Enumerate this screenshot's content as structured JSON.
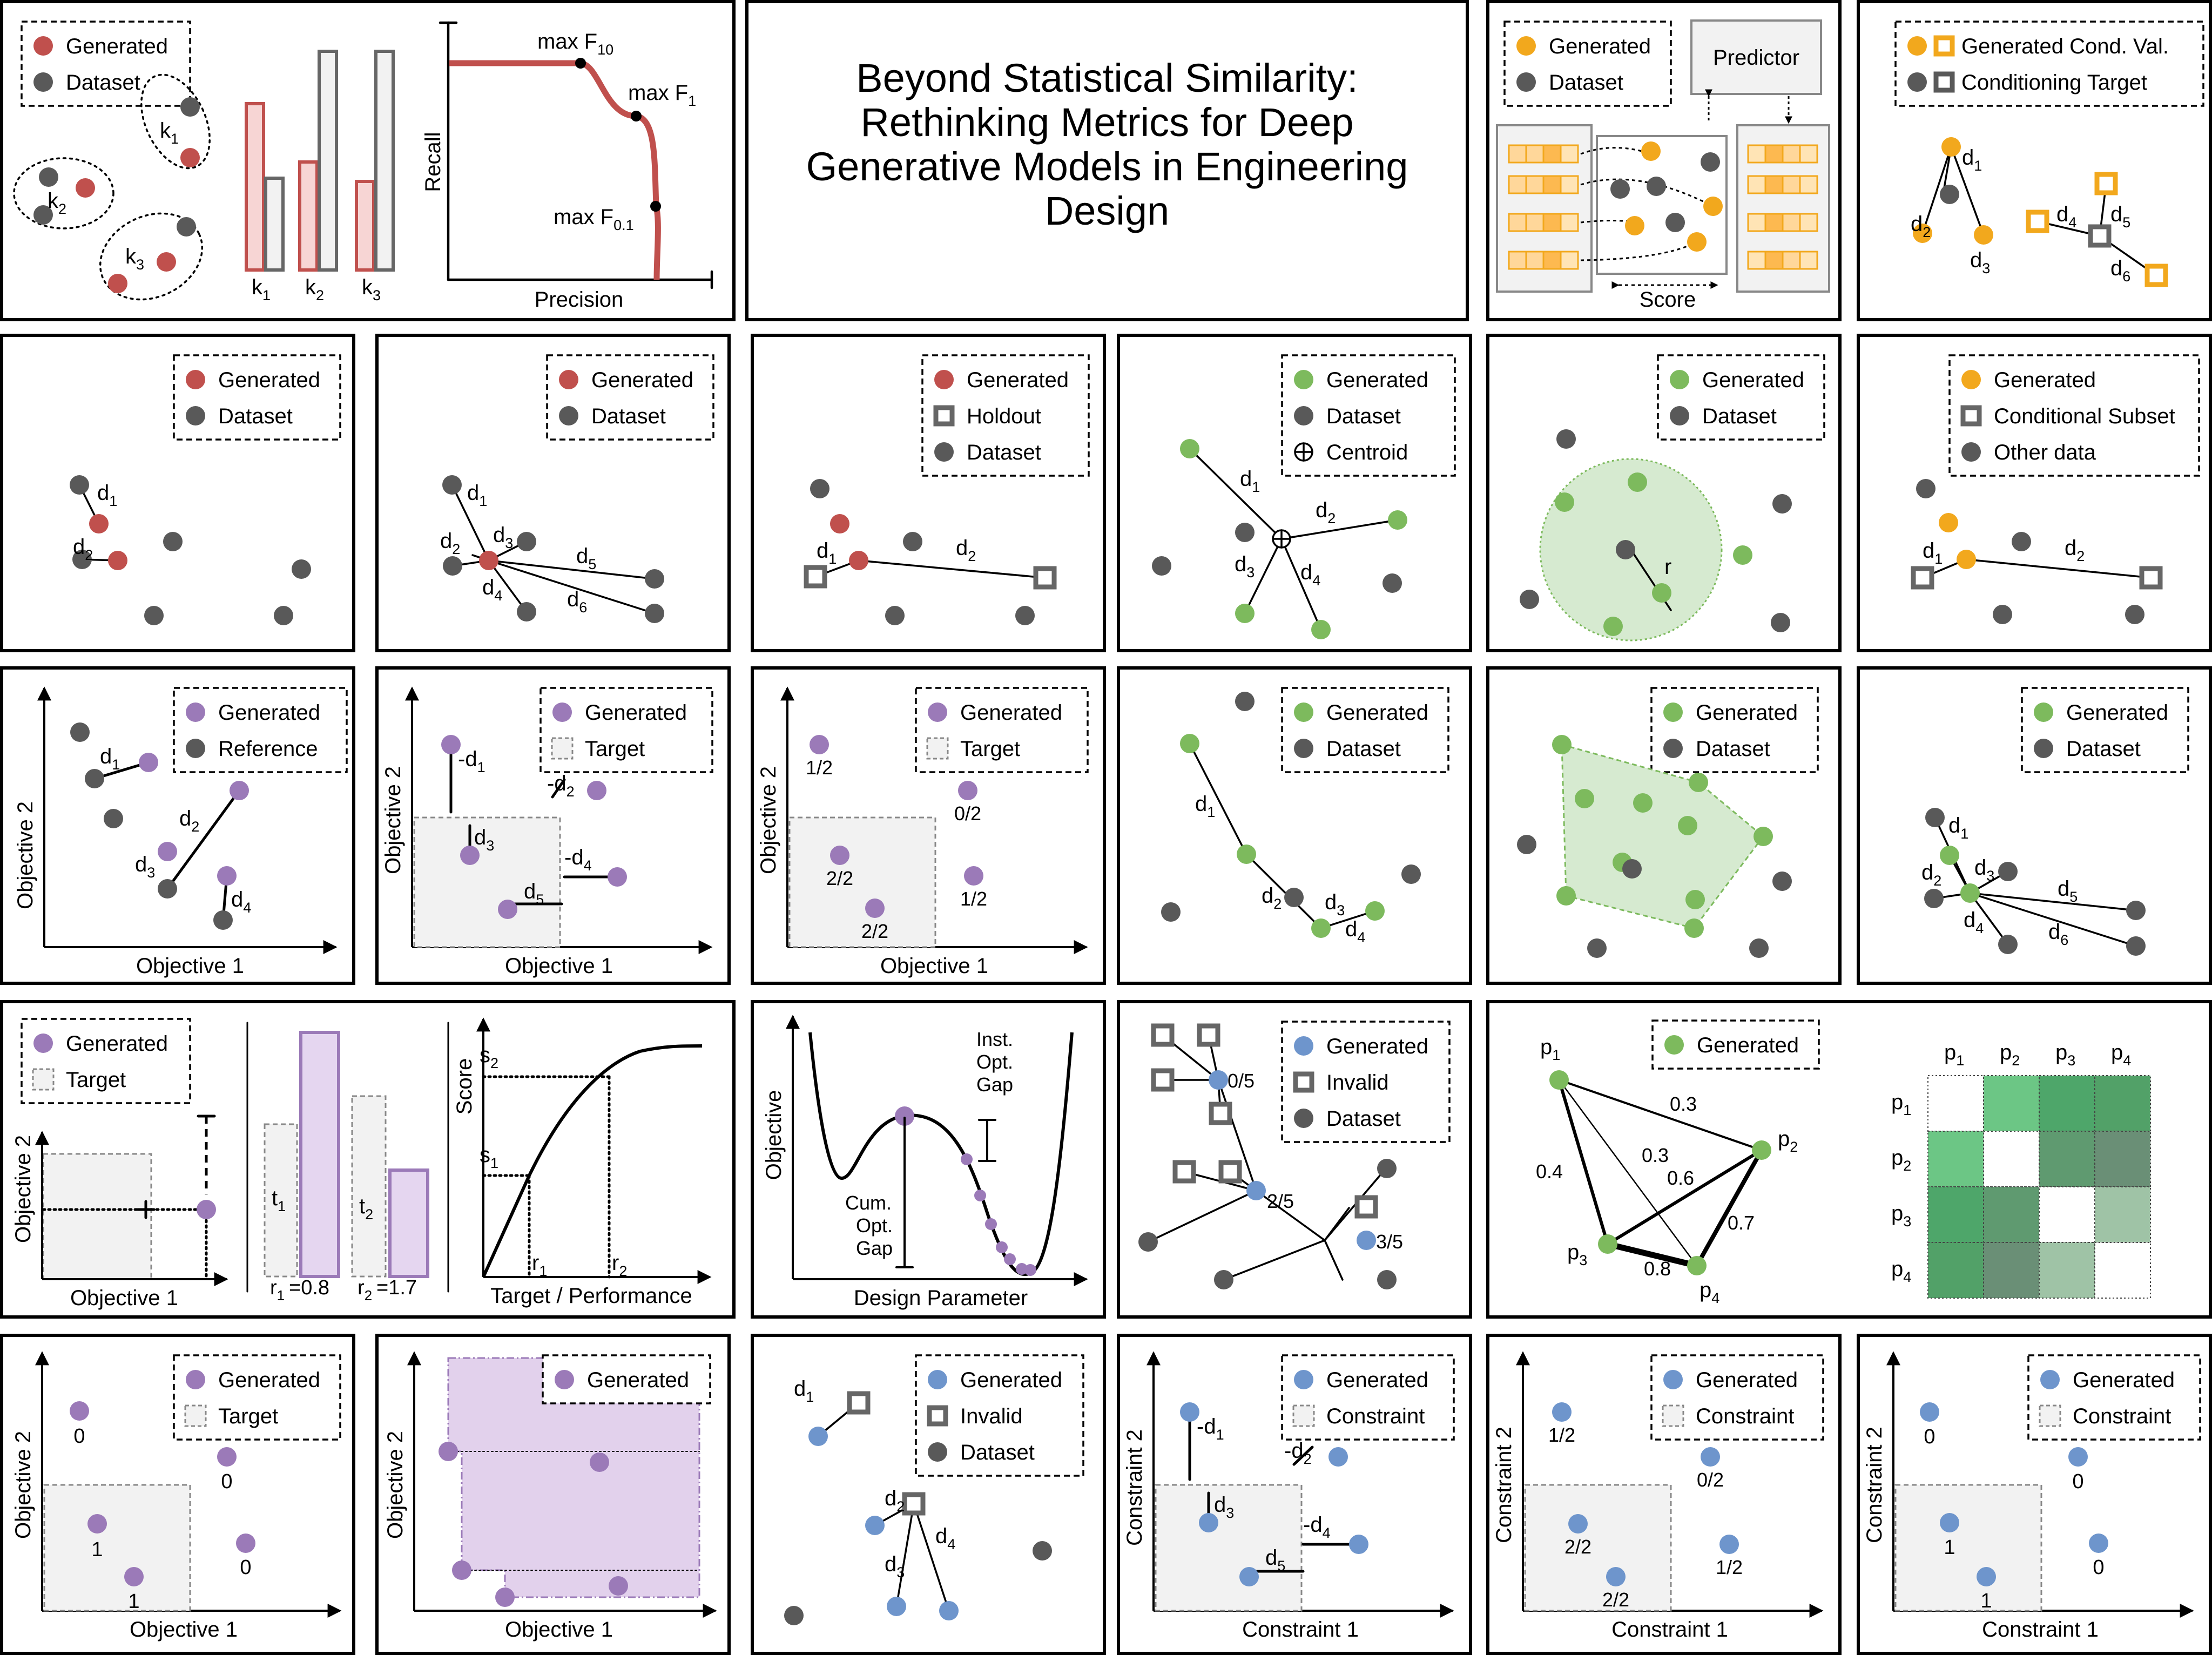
{
  "title": {
    "lines": [
      "Beyond Statistical Similarity:",
      "Rethinking Metrics for Deep",
      "Generative Models in Engineering",
      "Design"
    ]
  },
  "colors": {
    "red": "#c0504d",
    "gray": "#595959",
    "green": "#7dba5d",
    "purple": "#9b7ab8",
    "blue": "#6e95cc",
    "orange": "#f2a81d",
    "square": "#666666"
  },
  "legend": {
    "generated": "Generated",
    "dataset": "Dataset",
    "holdout": "Holdout",
    "centroid": "Centroid",
    "conditional_subset": "Conditional Subset",
    "other_data": "Other data",
    "reference": "Reference",
    "target": "Target",
    "invalid": "Invalid",
    "constraint": "Constraint",
    "generated_cond_val": "Generated Cond. Val.",
    "conditioning_target": "Conditioning Target"
  },
  "axes": {
    "recall": "Recall",
    "precision": "Precision",
    "objective_1": "Objective 1",
    "objective_2": "Objective 2",
    "constraint_1": "Constraint 1",
    "constraint_2": "Constraint 2",
    "score": "Score",
    "target_performance": "Target / Performance",
    "objective": "Objective",
    "design_parameter": "Design Parameter"
  },
  "labels": {
    "predictor": "Predictor",
    "score": "Score",
    "f_points": [
      "max F",
      "10",
      "max F",
      "1",
      "max F",
      "0.1"
    ],
    "k": [
      "k",
      "1",
      "k",
      "2",
      "k",
      "3"
    ],
    "d": [
      "d",
      "1",
      "2",
      "3",
      "4",
      "5",
      "6"
    ],
    "neg_d": "-d",
    "r": "r",
    "t1": "t",
    "t2": "t",
    "s1": "s",
    "s2": "s",
    "r1_val": "=0.8",
    "r2_val": "=1.7",
    "frac": {
      "half": "1/2",
      "zero_two": "0/2",
      "two_two": "2/2",
      "zero_five": "0/5",
      "two_five": "2/5",
      "three_five": "3/5"
    },
    "counts": {
      "zero": "0",
      "one": "1"
    },
    "inst_opt_gap": [
      "Inst.",
      "Opt.",
      "Gap"
    ],
    "cum_opt_gap": [
      "Cum.",
      "Opt.",
      "Gap"
    ],
    "p": "p",
    "edge_weights": [
      "0.3",
      "0.3",
      "0.4",
      "0.6",
      "0.7",
      "0.8"
    ]
  },
  "similarity_matrix": [
    [
      null,
      "#6cc685",
      "#4ea66a",
      "#52a168"
    ],
    [
      "#6cc685",
      null,
      "#5f9a70",
      "#6a8f76"
    ],
    [
      "#4ea66a",
      "#5f9a70",
      null,
      "#9fc3a6"
    ],
    [
      "#52a168",
      "#6a8f76",
      "#9fc3a6",
      null
    ]
  ]
}
